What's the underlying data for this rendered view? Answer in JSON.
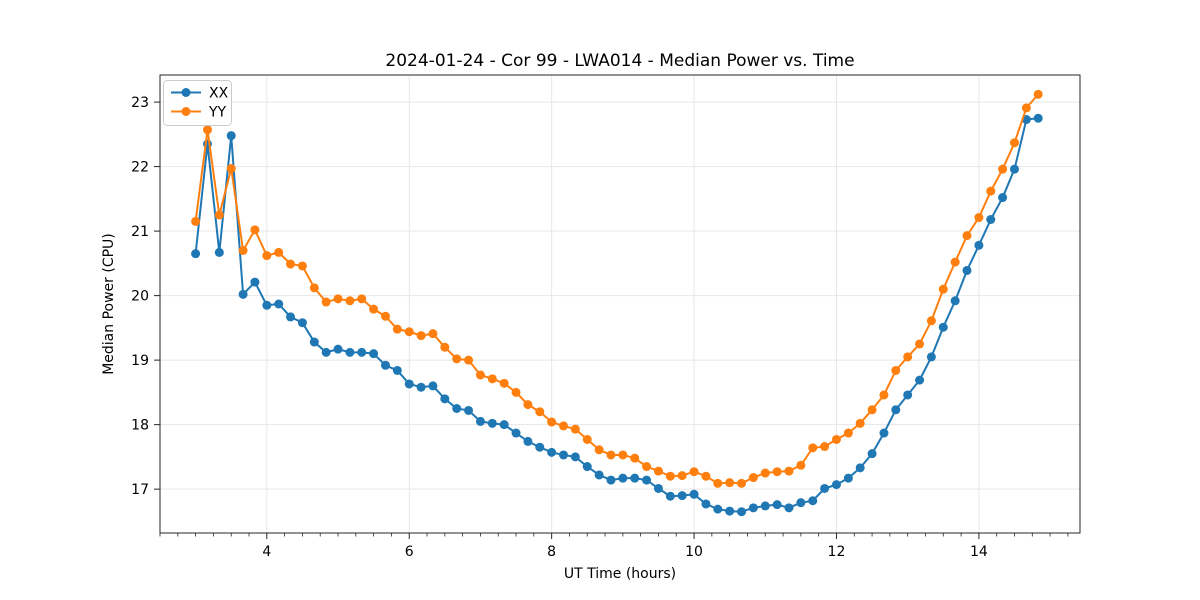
{
  "figure": {
    "background_color": "#ffffff",
    "plot_background_color": "#ffffff",
    "spine_color": "#262626",
    "grid_color": "#e6e6e6"
  },
  "chart_data": {
    "type": "line",
    "title": "2024-01-24 - Cor 99 - LWA014 - Median Power vs. Time",
    "xlabel": "UT Time (hours)",
    "ylabel": "Median Power (CPU)",
    "xlim": [
      2.5,
      15.42
    ],
    "ylim": [
      16.32,
      23.42
    ],
    "xticks": [
      4,
      6,
      8,
      10,
      12,
      14
    ],
    "yticks": [
      17,
      18,
      19,
      20,
      21,
      22,
      23
    ],
    "x_minor_step": 0.25,
    "grid": true,
    "legend_position": "upper-left",
    "marker": "o",
    "x": [
      3.0,
      3.167,
      3.333,
      3.5,
      3.667,
      3.833,
      4.0,
      4.167,
      4.333,
      4.5,
      4.667,
      4.833,
      5.0,
      5.167,
      5.333,
      5.5,
      5.667,
      5.833,
      6.0,
      6.167,
      6.333,
      6.5,
      6.667,
      6.833,
      7.0,
      7.167,
      7.333,
      7.5,
      7.667,
      7.833,
      8.0,
      8.167,
      8.333,
      8.5,
      8.667,
      8.833,
      9.0,
      9.167,
      9.333,
      9.5,
      9.667,
      9.833,
      10.0,
      10.167,
      10.333,
      10.5,
      10.667,
      10.833,
      11.0,
      11.167,
      11.333,
      11.5,
      11.667,
      11.833,
      12.0,
      12.167,
      12.333,
      12.5,
      12.667,
      12.833,
      13.0,
      13.167,
      13.333,
      13.5,
      13.667,
      13.833,
      14.0,
      14.167,
      14.333,
      14.5,
      14.667,
      14.833
    ],
    "series": [
      {
        "name": "XX",
        "color": "#1f77b4",
        "values": [
          20.65,
          22.35,
          20.67,
          22.48,
          20.02,
          20.21,
          19.85,
          19.87,
          19.67,
          19.58,
          19.28,
          19.12,
          19.17,
          19.12,
          19.12,
          19.1,
          18.92,
          18.84,
          18.63,
          18.58,
          18.6,
          18.4,
          18.25,
          18.22,
          18.05,
          18.02,
          18.0,
          17.87,
          17.74,
          17.65,
          17.57,
          17.53,
          17.5,
          17.35,
          17.22,
          17.14,
          17.17,
          17.17,
          17.14,
          17.01,
          16.89,
          16.9,
          16.92,
          16.77,
          16.69,
          16.66,
          16.65,
          16.71,
          16.74,
          16.76,
          16.71,
          16.79,
          16.82,
          17.01,
          17.07,
          17.17,
          17.33,
          17.55,
          17.87,
          18.23,
          18.46,
          18.69,
          19.05,
          19.51,
          19.92,
          20.39,
          20.78,
          21.18,
          21.52,
          21.96,
          22.73,
          22.75
        ]
      },
      {
        "name": "YY",
        "color": "#ff7f0e",
        "values": [
          21.15,
          22.57,
          21.25,
          21.97,
          20.7,
          21.02,
          20.62,
          20.67,
          20.49,
          20.46,
          20.12,
          19.9,
          19.95,
          19.92,
          19.95,
          19.79,
          19.68,
          19.48,
          19.44,
          19.38,
          19.41,
          19.2,
          19.02,
          19.0,
          18.77,
          18.71,
          18.64,
          18.5,
          18.31,
          18.2,
          18.04,
          17.98,
          17.93,
          17.77,
          17.61,
          17.53,
          17.53,
          17.48,
          17.35,
          17.28,
          17.2,
          17.21,
          17.27,
          17.2,
          17.09,
          17.1,
          17.09,
          17.18,
          17.25,
          17.27,
          17.28,
          17.37,
          17.64,
          17.66,
          17.77,
          17.87,
          18.02,
          18.23,
          18.46,
          18.84,
          19.05,
          19.25,
          19.61,
          20.1,
          20.52,
          20.93,
          21.21,
          21.62,
          21.96,
          22.37,
          22.91,
          23.12
        ]
      }
    ]
  }
}
